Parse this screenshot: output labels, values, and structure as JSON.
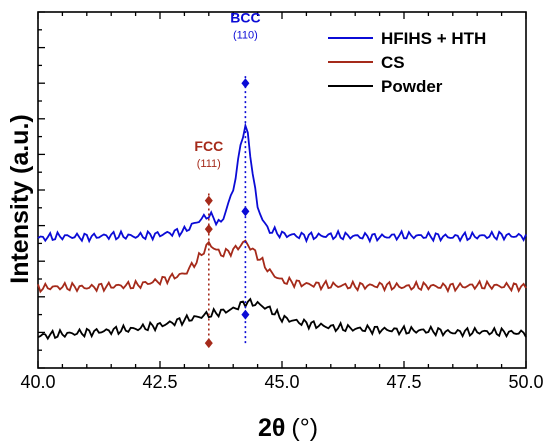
{
  "chart_data": {
    "type": "line",
    "xlabel_main": "2θ",
    "xlabel_unit": "(°)",
    "ylabel": "Intensity (a.u.)",
    "xlim": [
      40.0,
      50.0
    ],
    "ylim": [
      0,
      1
    ],
    "x_ticks": [
      "40.0",
      "42.5",
      "45.0",
      "47.5",
      "50.0"
    ],
    "legend_position": "top-right",
    "grid": false,
    "series": [
      {
        "name": "HFIHS + HTH",
        "color": "#0b0bd6",
        "x": [
          40.0,
          40.5,
          41.0,
          41.5,
          42.0,
          42.5,
          43.0,
          43.25,
          43.5,
          43.75,
          44.0,
          44.1,
          44.2,
          44.25,
          44.3,
          44.4,
          44.5,
          44.7,
          45.0,
          45.5,
          46.0,
          46.5,
          47.0,
          47.5,
          48.0,
          48.5,
          49.0,
          49.5,
          50.0
        ],
        "values": [
          0.365,
          0.37,
          0.368,
          0.372,
          0.37,
          0.375,
          0.385,
          0.41,
          0.43,
          0.405,
          0.5,
          0.58,
          0.66,
          0.68,
          0.65,
          0.55,
          0.45,
          0.39,
          0.375,
          0.37,
          0.372,
          0.37,
          0.368,
          0.372,
          0.37,
          0.368,
          0.37,
          0.372,
          0.37
        ]
      },
      {
        "name": "CS",
        "color": "#a52a1a",
        "x": [
          40.0,
          40.5,
          41.0,
          41.5,
          42.0,
          42.5,
          43.0,
          43.25,
          43.5,
          43.75,
          44.0,
          44.25,
          44.5,
          44.75,
          45.0,
          45.5,
          46.0,
          46.5,
          47.0,
          47.5,
          48.0,
          48.5,
          49.0,
          49.5,
          50.0
        ],
        "values": [
          0.225,
          0.228,
          0.226,
          0.23,
          0.232,
          0.245,
          0.265,
          0.3,
          0.35,
          0.32,
          0.33,
          0.355,
          0.315,
          0.27,
          0.245,
          0.235,
          0.232,
          0.23,
          0.232,
          0.228,
          0.23,
          0.228,
          0.232,
          0.23,
          0.228
        ]
      },
      {
        "name": "Powder",
        "color": "#000000",
        "x": [
          40.0,
          40.5,
          41.0,
          41.5,
          42.0,
          42.5,
          43.0,
          43.5,
          44.0,
          44.25,
          44.5,
          44.75,
          45.0,
          45.5,
          46.0,
          46.5,
          47.0,
          47.5,
          48.0,
          48.5,
          49.0,
          49.5,
          50.0
        ],
        "values": [
          0.09,
          0.095,
          0.1,
          0.105,
          0.11,
          0.12,
          0.135,
          0.15,
          0.165,
          0.185,
          0.18,
          0.165,
          0.14,
          0.125,
          0.115,
          0.11,
          0.108,
          0.105,
          0.105,
          0.1,
          0.102,
          0.1,
          0.098
        ]
      }
    ],
    "annotations": [
      {
        "label": "BCC",
        "sub": "(110)",
        "x": 44.25,
        "color": "#0b0bd6",
        "markers": [
          0.8,
          0.44,
          0.15
        ],
        "label_y": 0.97
      },
      {
        "label": "FCC",
        "sub": "(111)",
        "x": 43.5,
        "color": "#a52a1a",
        "markers": [
          0.47,
          0.39,
          0.07
        ],
        "label_y": 0.61
      }
    ]
  }
}
